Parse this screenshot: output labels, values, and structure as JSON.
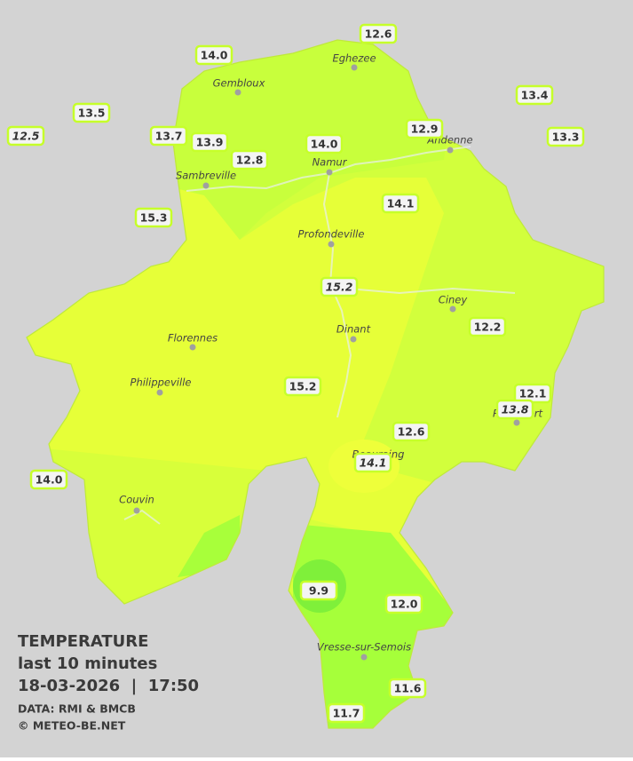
{
  "legend": {
    "title": "TEMPERATURE",
    "subtitle": "last 10 minutes",
    "datetime": "18-03-2026  |  17:50",
    "source": "DATA: RMI & BMCB",
    "copyright": "© METEO-BE.NET"
  },
  "cities": [
    "Eghezee",
    "Gembloux",
    "Andenne",
    "Sambreville",
    "Namur",
    "Profondeville",
    "Ciney",
    "Florennes",
    "Dinant",
    "Philippeville",
    "Rochefort",
    "Beauraing",
    "Couvin",
    "Vresse-sur-Semois"
  ],
  "stations": [
    {
      "value": "14.0",
      "italic": false
    },
    {
      "value": "12.6",
      "italic": false
    },
    {
      "value": "13.5",
      "italic": false
    },
    {
      "value": "12.5",
      "italic": true
    },
    {
      "value": "13.7",
      "italic": false
    },
    {
      "value": "13.9",
      "italic": false
    },
    {
      "value": "12.8",
      "italic": false
    },
    {
      "value": "14.0",
      "italic": false
    },
    {
      "value": "12.9",
      "italic": false
    },
    {
      "value": "13.4",
      "italic": false
    },
    {
      "value": "13.3",
      "italic": false
    },
    {
      "value": "14.1",
      "italic": false
    },
    {
      "value": "15.3",
      "italic": false
    },
    {
      "value": "15.2",
      "italic": true
    },
    {
      "value": "12.2",
      "italic": false
    },
    {
      "value": "15.2",
      "italic": false
    },
    {
      "value": "12.1",
      "italic": false
    },
    {
      "value": "13.8",
      "italic": true
    },
    {
      "value": "12.6",
      "italic": false
    },
    {
      "value": "14.1",
      "italic": true
    },
    {
      "value": "14.0",
      "italic": false
    },
    {
      "value": "9.9",
      "italic": false
    },
    {
      "value": "12.0",
      "italic": false
    },
    {
      "value": "11.6",
      "italic": false
    },
    {
      "value": "11.7",
      "italic": false
    }
  ]
}
